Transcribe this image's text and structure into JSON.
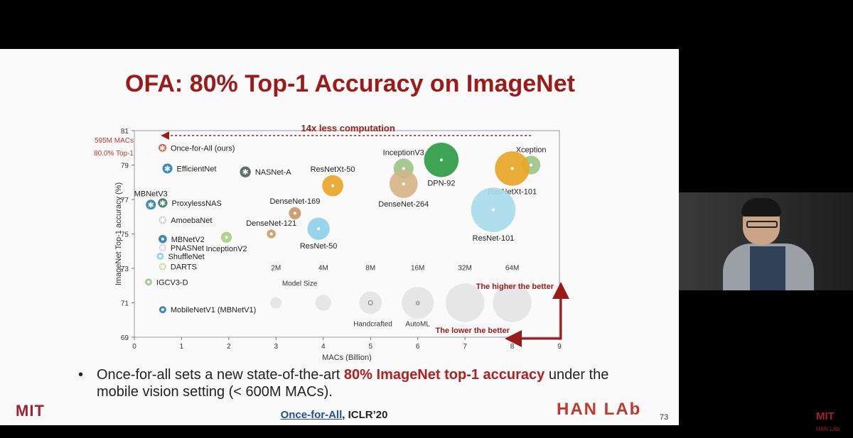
{
  "slide": {
    "title": "OFA: 80% Top-1 Accuracy on ImageNet",
    "bullet_prefix": "Once-for-all sets a new state-of-the-art ",
    "bullet_highlight": "80% ImageNet top-1 accuracy",
    "bullet_suffix": " under the mobile vision setting (< 600M MACs).",
    "bullet_symbol": "•",
    "footer_link": "Once-for-All",
    "footer_rest": ", ICLR’20",
    "page_number": "73",
    "left_logo": "MIT",
    "right_logo": "HAN LAb",
    "corner_logo": "MIT",
    "corner_sub": "HAN LAb"
  },
  "chart_data": {
    "type": "scatter",
    "xlabel": "MACs (Billion)",
    "ylabel": "ImageNet Top-1 accuracy (%)",
    "xlim": [
      0,
      9
    ],
    "ylim": [
      69,
      81
    ],
    "xticks": [
      "0",
      "1",
      "2",
      "3",
      "4",
      "5",
      "6",
      "7",
      "8",
      "9"
    ],
    "yticks": [
      "69",
      "71",
      "73",
      "75",
      "77",
      "79",
      "81"
    ],
    "grid": false,
    "points": [
      {
        "label": "Once-for-All (ours)",
        "x": 0.595,
        "y": 80.0,
        "size": "0.6M",
        "color": "#d9452b",
        "marker": "star",
        "label_pos": "right"
      },
      {
        "label": "EfficientNet",
        "x": 0.7,
        "y": 78.8,
        "size": "1M",
        "color": "#2f7fb0",
        "marker": "star",
        "label_pos": "right"
      },
      {
        "label": "NASNet-A",
        "x": 2.35,
        "y": 78.6,
        "size": "1.2M",
        "color": "#56605e",
        "marker": "star",
        "label_pos": "right"
      },
      {
        "label": "ResNetXt-50",
        "x": 4.2,
        "y": 77.8,
        "size": "4.5M",
        "color": "#e8a628",
        "marker": "dot",
        "label_pos": "above"
      },
      {
        "label": "InceptionV3",
        "x": 5.7,
        "y": 78.8,
        "size": "4M",
        "color": "#9dc48a",
        "marker": "dot",
        "label_pos": "above"
      },
      {
        "label": "DPN-92",
        "x": 6.5,
        "y": 79.3,
        "size": "12M",
        "color": "#2e9b46",
        "marker": "dot",
        "label_pos": "below"
      },
      {
        "label": "Xception",
        "x": 8.4,
        "y": 79.0,
        "size": "3.5M",
        "color": "#9dc48a",
        "marker": "dot",
        "label_pos": "above"
      },
      {
        "label": "ResNetXt-101",
        "x": 8.0,
        "y": 78.8,
        "size": "12M",
        "color": "#e8a628",
        "marker": "dot",
        "label_pos": "below"
      },
      {
        "label": "DenseNet-264",
        "x": 5.7,
        "y": 77.9,
        "size": "8M",
        "color": "#d6b48a",
        "marker": "dot",
        "label_pos": "below"
      },
      {
        "label": "DenseNet-169",
        "x": 3.4,
        "y": 76.2,
        "size": "1.5M",
        "color": "#c59a6a",
        "marker": "dot",
        "label_pos": "above"
      },
      {
        "label": "ResNet-50",
        "x": 3.9,
        "y": 75.3,
        "size": "5M",
        "color": "#8fd0e8",
        "marker": "dot",
        "label_pos": "below"
      },
      {
        "label": "ResNet-101",
        "x": 7.6,
        "y": 76.4,
        "size": "20M",
        "color": "#a8dcea",
        "marker": "dot",
        "label_pos": "below"
      },
      {
        "label": "DenseNet-121",
        "x": 2.9,
        "y": 75.0,
        "size": "0.8M",
        "color": "#c9a16b",
        "marker": "dot",
        "label_pos": "above"
      },
      {
        "label": "InceptionV2",
        "x": 1.95,
        "y": 74.8,
        "size": "1.2M",
        "color": "#a6cf86",
        "marker": "dot",
        "label_pos": "below"
      },
      {
        "label": "MBNetV3",
        "x": 0.35,
        "y": 76.7,
        "size": "1M",
        "color": "#2f7fb0",
        "marker": "star",
        "label_pos": "above"
      },
      {
        "label": "ProxylessNAS",
        "x": 0.6,
        "y": 76.8,
        "size": "0.9M",
        "color": "#3e7a5f",
        "marker": "star",
        "label_pos": "right"
      },
      {
        "label": "AmoebaNet",
        "x": 0.6,
        "y": 75.8,
        "size": "0.6M",
        "color": "#cfcfcf",
        "marker": "star",
        "label_pos": "right"
      },
      {
        "label": "MBNetV2",
        "x": 0.6,
        "y": 74.7,
        "size": "0.7M",
        "color": "#2f7fb0",
        "marker": "dot",
        "label_pos": "right"
      },
      {
        "label": "PNASNet",
        "x": 0.6,
        "y": 74.2,
        "size": "0.5M",
        "color": "#cfcfcf",
        "marker": "star",
        "label_pos": "right"
      },
      {
        "label": "ShuffleNet",
        "x": 0.55,
        "y": 73.7,
        "size": "0.4M",
        "color": "#8fd0e8",
        "marker": "dot",
        "label_pos": "right"
      },
      {
        "label": "DARTS",
        "x": 0.6,
        "y": 73.1,
        "size": "0.5M",
        "color": "#b9d98d",
        "marker": "star",
        "label_pos": "right"
      },
      {
        "label": "IGCV3-D",
        "x": 0.3,
        "y": 72.2,
        "size": "0.4M",
        "color": "#9dc48a",
        "marker": "dot",
        "label_pos": "right"
      },
      {
        "label": "MobileNetV1 (MBNetV1)",
        "x": 0.6,
        "y": 70.6,
        "size": "0.5M",
        "color": "#2f7fb0",
        "marker": "dot",
        "label_pos": "right"
      }
    ],
    "size_legend": {
      "title": "Model Size",
      "entries": [
        {
          "label": "2M",
          "x": 3.0,
          "size": "2M"
        },
        {
          "label": "4M",
          "x": 4.0,
          "size": "4M"
        },
        {
          "label": "8M",
          "x": 5.0,
          "size": "8M"
        },
        {
          "label": "16M",
          "x": 6.0,
          "size": "16M"
        },
        {
          "label": "32M",
          "x": 7.0,
          "size": "32M"
        },
        {
          "label": "64M",
          "x": 8.0,
          "size": "64M"
        }
      ],
      "y": 71.0,
      "handcrafted_label": "Handcrafted",
      "automl_label": "AutoML"
    },
    "annotations": {
      "computation_label": "14x less computation",
      "ofa_macs_label": "595M MACs",
      "ofa_acc_label": "80.0% Top-1",
      "higher_label": "The higher the better",
      "lower_label": "The lower the better"
    }
  }
}
